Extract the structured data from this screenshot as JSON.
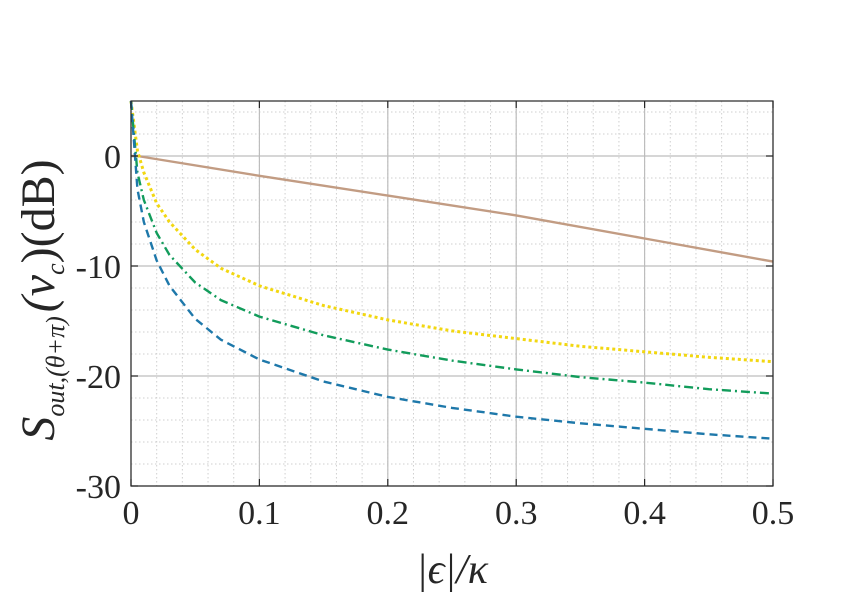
{
  "chart_data": {
    "type": "line",
    "title": "",
    "xlabel": "|ϵ|/κ",
    "ylabel": {
      "main": "S",
      "sub": "out,(θ+π)",
      "arg": "(ν",
      "arg_sub": "c",
      "arg_close": ")",
      "unit": "(dB)"
    },
    "xlim": [
      0,
      0.5
    ],
    "ylim": [
      -30,
      5
    ],
    "xticks": [
      0,
      0.1,
      0.2,
      0.3,
      0.4,
      0.5
    ],
    "xtick_labels": [
      "0",
      "0.1",
      "0.2",
      "0.3",
      "0.4",
      "0.5"
    ],
    "yticks": [
      -30,
      -20,
      -10,
      0
    ],
    "ytick_labels": [
      "-30",
      "-20",
      "-10",
      "0"
    ],
    "grid": true,
    "minor_grid": true,
    "legend": "none",
    "series": [
      {
        "color": "#c29c83",
        "style": "solid",
        "x": [
          0,
          0.005,
          0.1,
          0.2,
          0.3,
          0.4,
          0.5
        ],
        "y": [
          0,
          0,
          -1.8,
          -3.6,
          -5.4,
          -7.5,
          -9.6
        ]
      },
      {
        "color": "#f2d711",
        "style": "dotted",
        "x": [
          0,
          0.005,
          0.01,
          0.02,
          0.03,
          0.05,
          0.07,
          0.1,
          0.15,
          0.2,
          0.25,
          0.3,
          0.35,
          0.4,
          0.45,
          0.5
        ],
        "y": [
          5,
          0.5,
          -1.5,
          -4.3,
          -6.0,
          -8.5,
          -10.2,
          -11.8,
          -13.6,
          -14.9,
          -15.9,
          -16.6,
          -17.3,
          -17.8,
          -18.3,
          -18.7
        ]
      },
      {
        "color": "#129c5b",
        "style": "dashdot",
        "x": [
          0,
          0.005,
          0.01,
          0.02,
          0.03,
          0.05,
          0.07,
          0.1,
          0.15,
          0.2,
          0.25,
          0.3,
          0.35,
          0.4,
          0.45,
          0.5
        ],
        "y": [
          5,
          -1.5,
          -4.0,
          -7.0,
          -9.0,
          -11.5,
          -13.1,
          -14.6,
          -16.3,
          -17.6,
          -18.6,
          -19.4,
          -20.1,
          -20.6,
          -21.2,
          -21.6
        ]
      },
      {
        "color": "#1e78aa",
        "style": "dashed",
        "x": [
          0,
          0.005,
          0.01,
          0.02,
          0.03,
          0.05,
          0.07,
          0.1,
          0.15,
          0.2,
          0.25,
          0.3,
          0.35,
          0.4,
          0.45,
          0.5
        ],
        "y": [
          5,
          -3.0,
          -6.0,
          -9.5,
          -11.8,
          -14.8,
          -16.7,
          -18.5,
          -20.5,
          -21.9,
          -22.9,
          -23.7,
          -24.3,
          -24.8,
          -25.3,
          -25.7
        ]
      }
    ]
  }
}
